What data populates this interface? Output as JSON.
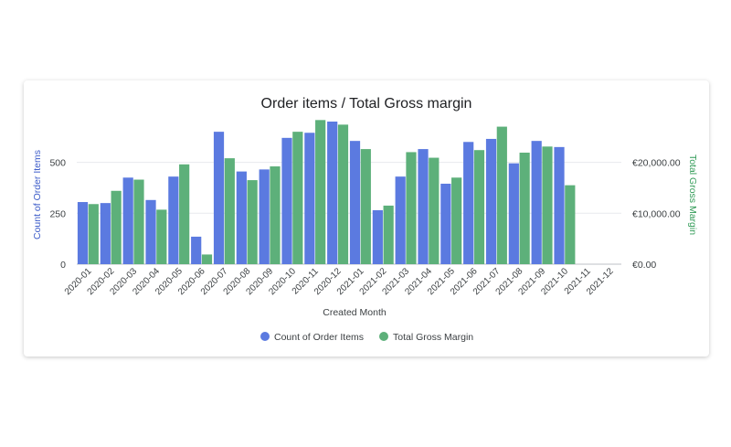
{
  "chart_data": {
    "type": "bar",
    "title": "Order items / Total Gross margin",
    "xlabel": "Created Month",
    "categories": [
      "2020-01",
      "2020-02",
      "2020-03",
      "2020-04",
      "2020-05",
      "2020-06",
      "2020-07",
      "2020-08",
      "2020-09",
      "2020-10",
      "2020-11",
      "2020-12",
      "2021-01",
      "2021-02",
      "2021-03",
      "2021-04",
      "2021-05",
      "2021-06",
      "2021-07",
      "2021-08",
      "2021-09",
      "2021-10",
      "2021-11",
      "2021-12"
    ],
    "series": [
      {
        "name": "Count of Order Items",
        "axis": "left",
        "color": "#5b7ae0",
        "values": [
          305,
          300,
          425,
          315,
          430,
          135,
          650,
          455,
          465,
          620,
          645,
          700,
          605,
          265,
          430,
          565,
          395,
          600,
          615,
          495,
          605,
          575,
          null,
          null
        ]
      },
      {
        "name": "Total Gross Margin",
        "axis": "right",
        "color": "#5db07a",
        "values": [
          11800,
          14400,
          16600,
          10700,
          19600,
          1900,
          20800,
          16500,
          19200,
          26000,
          28300,
          27400,
          22600,
          11500,
          22000,
          20900,
          17000,
          22400,
          27000,
          21900,
          23100,
          15500,
          null,
          null
        ]
      }
    ],
    "y_left": {
      "label": "Count of Order Items",
      "ticks": [
        0,
        250,
        500
      ],
      "tick_labels": [
        "0",
        "250",
        "500"
      ],
      "range": [
        0,
        700
      ],
      "color": "#3d5cc9"
    },
    "y_right": {
      "label": "Total Gross Margin",
      "ticks": [
        0,
        10000,
        20000
      ],
      "tick_labels": [
        "€0.00",
        "€10,000.00",
        "€20,000.00"
      ],
      "range": [
        0,
        28000
      ],
      "color": "#2f9a55"
    },
    "grid": true,
    "legend_position": "bottom"
  }
}
